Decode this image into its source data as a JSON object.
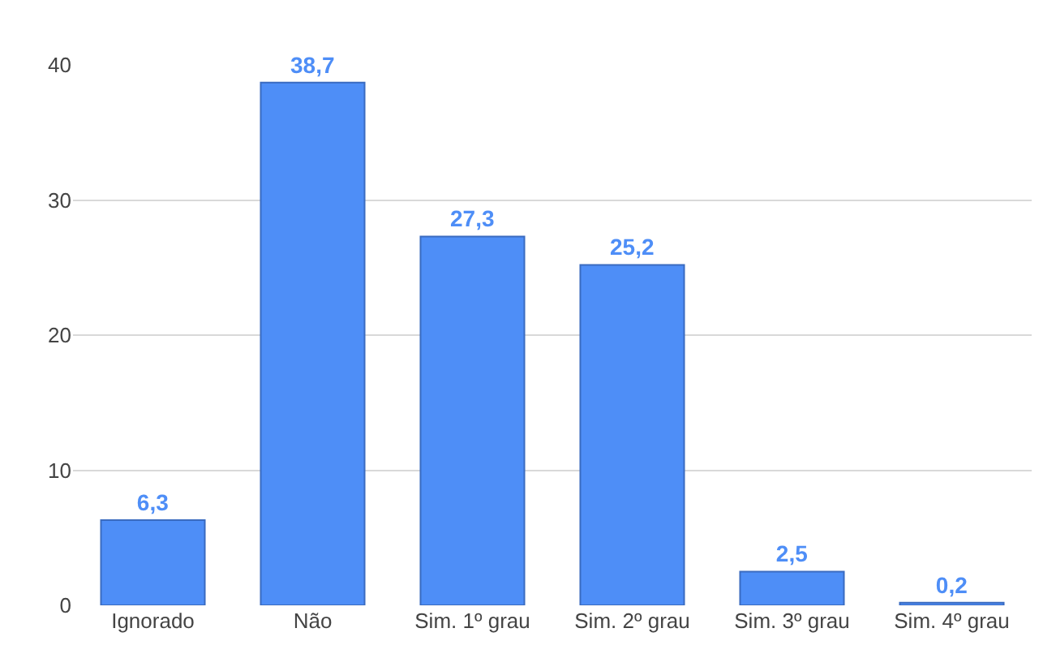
{
  "chart_data": {
    "type": "bar",
    "categories": [
      "Ignorado",
      "Não",
      "Sim. 1º grau",
      "Sim. 2º grau",
      "Sim. 3º grau",
      "Sim. 4º grau"
    ],
    "values": [
      6.3,
      38.7,
      27.3,
      25.2,
      2.5,
      0.2
    ],
    "value_labels": [
      "6,3",
      "38,7",
      "27,3",
      "25,2",
      "2,5",
      "0,2"
    ],
    "color": "#4e8ef7",
    "ylim": [
      0,
      40
    ],
    "yticks": [
      0,
      10,
      20,
      30,
      40
    ],
    "grid": "y",
    "legend": false
  }
}
